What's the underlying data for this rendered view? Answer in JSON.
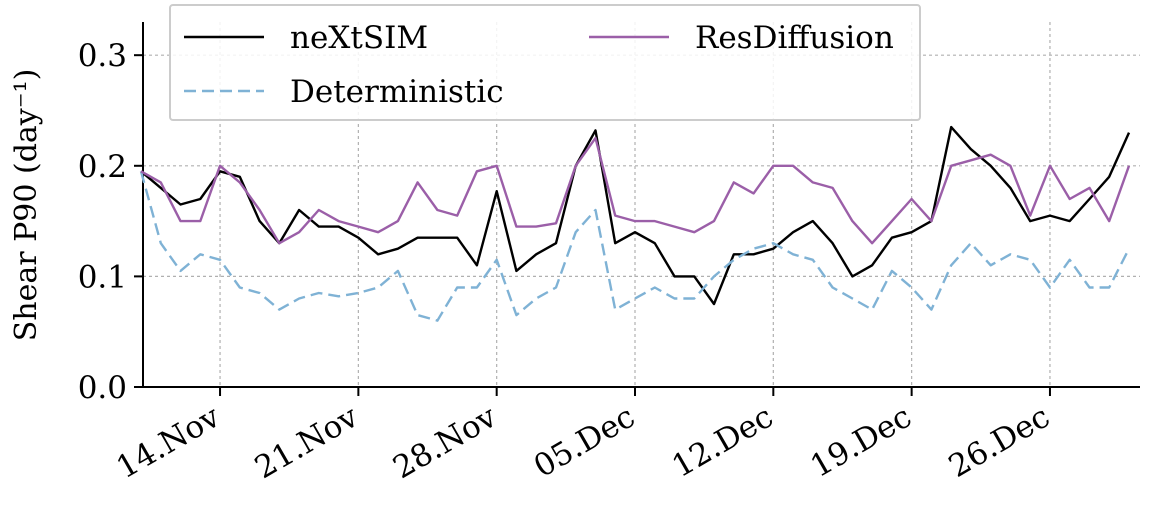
{
  "chart_data": {
    "type": "line",
    "ylabel": "Shear P90 (day⁻¹)",
    "categories": [
      null,
      null,
      null,
      null,
      "14.Nov",
      null,
      null,
      null,
      null,
      null,
      null,
      "21.Nov",
      null,
      null,
      null,
      null,
      null,
      null,
      "28.Nov",
      null,
      null,
      null,
      null,
      null,
      null,
      "05.Dec",
      null,
      null,
      null,
      null,
      null,
      null,
      "12.Dec",
      null,
      null,
      null,
      null,
      null,
      null,
      "19.Dec",
      null,
      null,
      null,
      null,
      null,
      null,
      "26.Dec",
      null,
      null,
      null,
      null
    ],
    "series": [
      {
        "name": "neXtSIM",
        "color": "#000000",
        "dash": "solid",
        "values": [
          0.195,
          0.18,
          0.165,
          0.17,
          0.195,
          0.19,
          0.15,
          0.13,
          0.16,
          0.145,
          0.145,
          0.135,
          0.12,
          0.125,
          0.135,
          0.135,
          0.135,
          0.11,
          0.177,
          0.105,
          0.12,
          0.13,
          0.2,
          0.232,
          0.13,
          0.14,
          0.13,
          0.1,
          0.1,
          0.075,
          0.12,
          0.12,
          0.125,
          0.14,
          0.15,
          0.13,
          0.1,
          0.11,
          0.135,
          0.14,
          0.15,
          0.235,
          0.215,
          0.2,
          0.18,
          0.15,
          0.155,
          0.15,
          0.17,
          0.19,
          0.23
        ]
      },
      {
        "name": "Deterministic",
        "color": "#7fb2d5",
        "dash": "dashed",
        "values": [
          0.195,
          0.13,
          0.105,
          0.12,
          0.115,
          0.09,
          0.085,
          0.07,
          0.08,
          0.085,
          0.082,
          0.085,
          0.09,
          0.105,
          0.065,
          0.06,
          0.09,
          0.09,
          0.115,
          0.065,
          0.08,
          0.09,
          0.14,
          0.16,
          0.07,
          0.08,
          0.09,
          0.08,
          0.08,
          0.1,
          0.115,
          0.125,
          0.13,
          0.12,
          0.115,
          0.09,
          0.08,
          0.07,
          0.105,
          0.09,
          0.07,
          0.11,
          0.13,
          0.11,
          0.12,
          0.115,
          0.09,
          0.115,
          0.09,
          0.09,
          0.125
        ]
      },
      {
        "name": "ResDiffusion",
        "color": "#9b5fa8",
        "dash": "solid",
        "values": [
          0.195,
          0.185,
          0.15,
          0.15,
          0.2,
          0.185,
          0.16,
          0.13,
          0.14,
          0.16,
          0.15,
          0.145,
          0.14,
          0.15,
          0.185,
          0.16,
          0.155,
          0.195,
          0.2,
          0.145,
          0.145,
          0.148,
          0.2,
          0.225,
          0.155,
          0.15,
          0.15,
          0.145,
          0.14,
          0.15,
          0.185,
          0.175,
          0.2,
          0.2,
          0.185,
          0.18,
          0.15,
          0.13,
          0.15,
          0.17,
          0.15,
          0.2,
          0.205,
          0.21,
          0.2,
          0.155,
          0.2,
          0.17,
          0.18,
          0.15,
          0.2
        ]
      }
    ],
    "ylim": [
      0,
      0.33
    ],
    "yticks": [
      {
        "value": 0,
        "label": "0.0"
      },
      0.1,
      0.2,
      0.3
    ],
    "grid": true,
    "legend": "upper left"
  }
}
